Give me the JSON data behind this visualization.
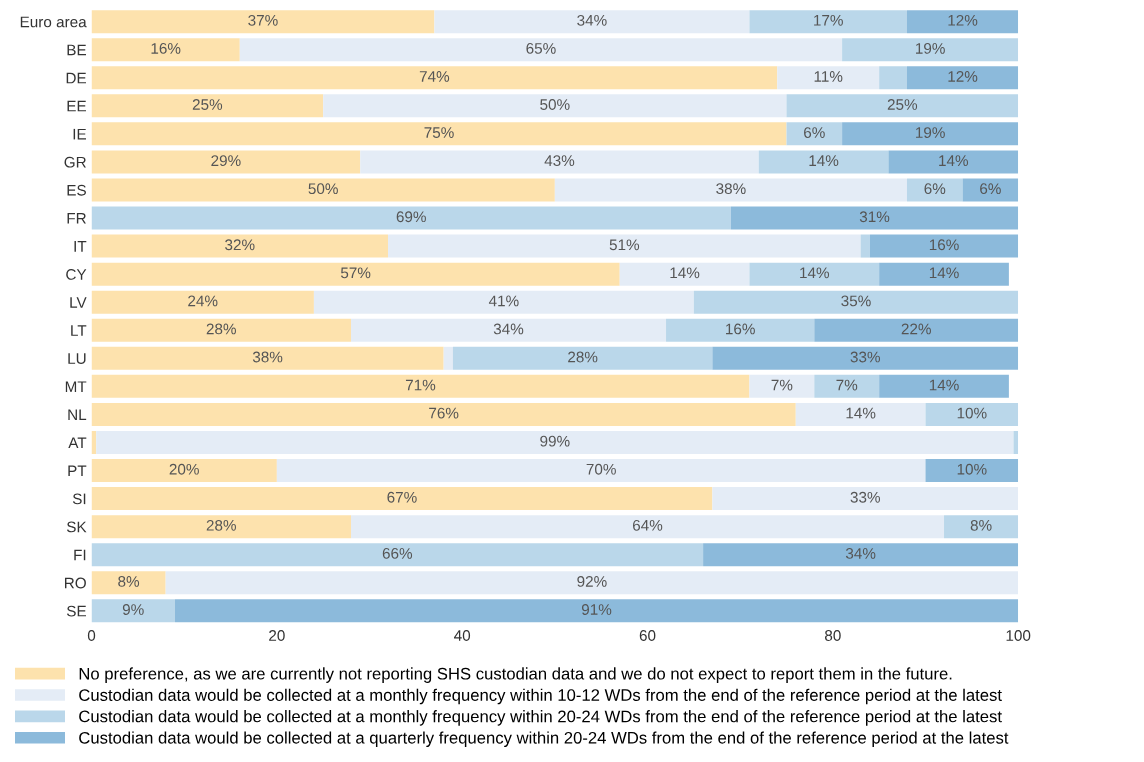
{
  "chart_data": {
    "type": "bar",
    "orientation": "horizontal",
    "stacked": true,
    "categories": [
      "Euro area",
      "BE",
      "DE",
      "EE",
      "IE",
      "GR",
      "ES",
      "FR",
      "IT",
      "CY",
      "LV",
      "LT",
      "LU",
      "MT",
      "NL",
      "AT",
      "PT",
      "SI",
      "SK",
      "FI",
      "RO",
      "SE"
    ],
    "series": [
      {
        "name": "No preference, as we are currently not reporting SHS custodian data and we do not expect to report them in the future.",
        "color": "#fde2ad",
        "values": [
          37,
          16,
          74,
          25,
          75,
          29,
          50,
          0,
          32,
          57,
          24,
          28,
          38,
          71,
          76,
          0.5,
          20,
          67,
          28,
          0,
          8,
          0
        ],
        "value_labels": [
          "37%",
          "16%",
          "74%",
          "25%",
          "75%",
          "29%",
          "50%",
          null,
          "32%",
          "57%",
          "24%",
          "28%",
          "38%",
          "71%",
          "76%",
          null,
          "20%",
          "67%",
          "28%",
          null,
          "8%",
          null
        ]
      },
      {
        "name": "Custodian data would be collected at a monthly frequency within 10-12 WDs from the end of the reference period at the latest",
        "color": "#e4ecf6",
        "values": [
          34,
          65,
          11,
          50,
          0,
          43,
          38,
          0,
          51,
          14,
          41,
          34,
          1,
          7,
          14,
          99,
          70,
          33,
          64,
          0,
          92,
          0
        ],
        "value_labels": [
          "34%",
          "65%",
          "11%",
          "50%",
          null,
          "43%",
          "38%",
          null,
          "51%",
          "14%",
          "41%",
          "34%",
          null,
          "7%",
          "14%",
          "99%",
          "70%",
          "33%",
          "64%",
          null,
          "92%",
          null
        ]
      },
      {
        "name": "Custodian data would be collected at a monthly frequency within 20-24 WDs from the end of the reference period at the latest",
        "color": "#bad7ea",
        "values": [
          17,
          19,
          3,
          25,
          6,
          14,
          6,
          69,
          1,
          14,
          35,
          16,
          28,
          7,
          10,
          0.5,
          0,
          0,
          8,
          66,
          0,
          9
        ],
        "value_labels": [
          "17%",
          "19%",
          null,
          "25%",
          "6%",
          "14%",
          "6%",
          "69%",
          null,
          "14%",
          "35%",
          "16%",
          "28%",
          "7%",
          "10%",
          null,
          null,
          null,
          "8%",
          "66%",
          null,
          "9%"
        ]
      },
      {
        "name": "Custodian data would be collected at a quarterly frequency within 20-24 WDs from the end of the reference period at the latest",
        "color": "#8cbadb",
        "values": [
          12,
          0,
          12,
          0,
          19,
          14,
          6,
          31,
          16,
          14,
          0,
          22,
          33,
          14,
          0,
          0,
          10,
          0,
          0,
          34,
          0,
          91
        ],
        "value_labels": [
          "12%",
          null,
          "12%",
          null,
          "19%",
          "14%",
          "6%",
          "31%",
          "16%",
          "14%",
          null,
          "22%",
          "33%",
          "14%",
          null,
          null,
          "10%",
          null,
          null,
          "34%",
          null,
          "91%"
        ]
      }
    ],
    "xlim": [
      0,
      100
    ],
    "xticks": [
      0,
      20,
      40,
      60,
      80,
      100
    ],
    "grid": false,
    "legend": "bottom left"
  }
}
